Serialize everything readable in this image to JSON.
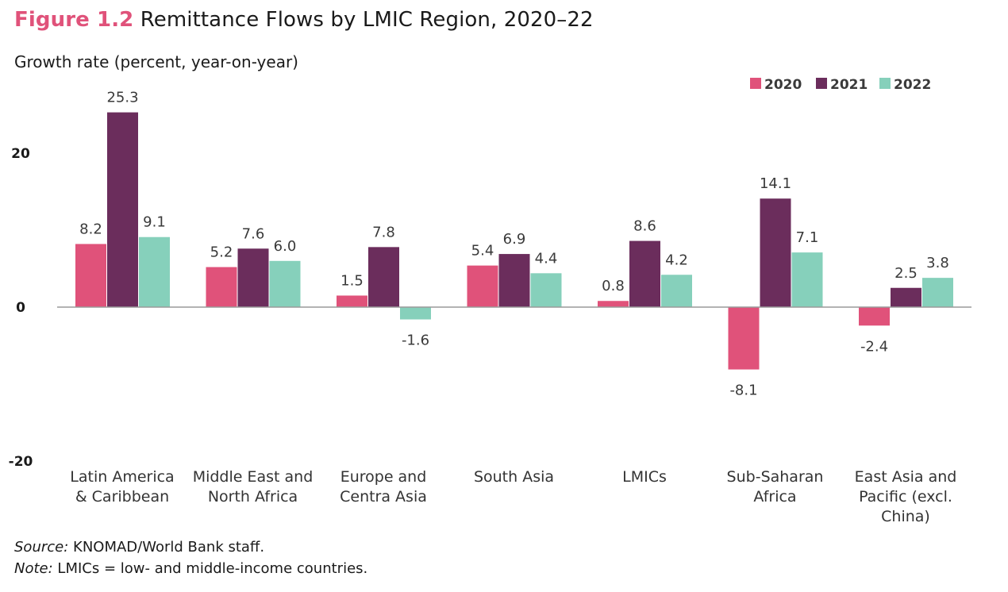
{
  "header": {
    "figure_label": "Figure 1.2",
    "title": "Remittance Flows by LMIC Region, 2020–22",
    "subtitle": "Growth rate (percent, year-on-year)"
  },
  "chart_data": {
    "type": "bar",
    "title": "Remittance Flows by LMIC Region, 2020–22",
    "ylabel": "Growth rate (percent, year-on-year)",
    "ylim": [
      -20,
      30
    ],
    "yticks": [
      -20,
      0,
      20
    ],
    "grid": false,
    "legend_position": "top-right",
    "categories": [
      [
        "Latin America",
        "& Caribbean"
      ],
      [
        "Middle East and",
        "North Africa"
      ],
      [
        "Europe and",
        "Centra Asia"
      ],
      [
        "South Asia"
      ],
      [
        "LMICs"
      ],
      [
        "Sub-Saharan",
        "Africa"
      ],
      [
        "East Asia and",
        "Pacific (excl.",
        "China)"
      ]
    ],
    "series": [
      {
        "name": "2020",
        "color": "#e0527a",
        "values": [
          8.2,
          5.2,
          1.5,
          5.4,
          0.8,
          -8.1,
          -2.4
        ]
      },
      {
        "name": "2021",
        "color": "#6b2d5c",
        "values": [
          25.3,
          7.6,
          7.8,
          6.9,
          8.6,
          14.1,
          2.5
        ]
      },
      {
        "name": "2022",
        "color": "#86d0bb",
        "values": [
          9.1,
          6.0,
          -1.6,
          4.4,
          4.2,
          7.1,
          3.8
        ]
      }
    ]
  },
  "footer": {
    "source_label": "Source:",
    "source_text": " KNOMAD/World Bank staff.",
    "note_label": "Note:",
    "note_text": " LMICs = low- and middle-income countries."
  }
}
